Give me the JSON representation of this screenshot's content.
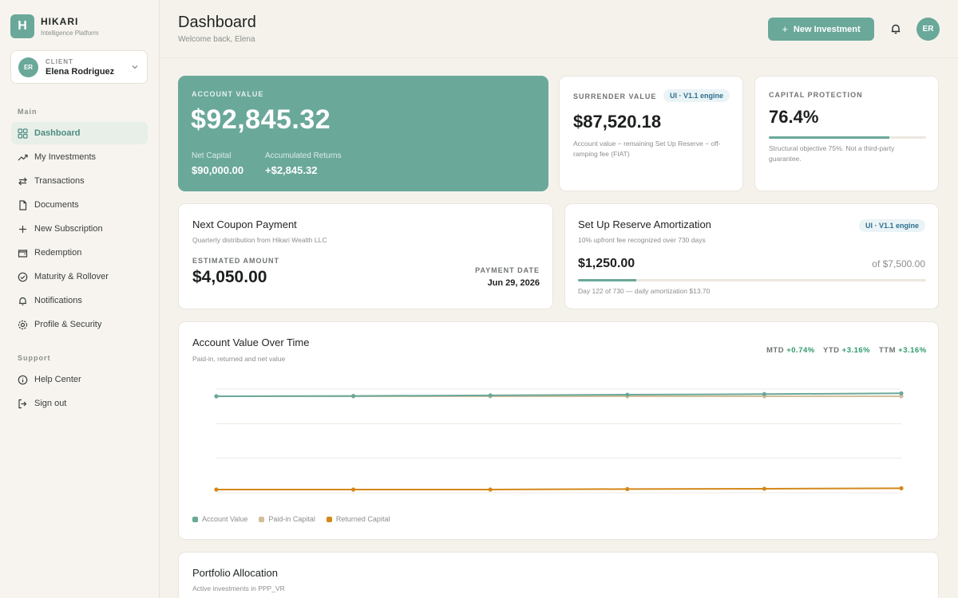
{
  "brand": {
    "initial": "H",
    "name": "HIKARI",
    "subtitle": "Intelligence Platform"
  },
  "client": {
    "initials": "ER",
    "label": "CLIENT",
    "name": "Elena Rodriguez"
  },
  "sidebar": {
    "main_label": "Main",
    "items": [
      {
        "label": "Dashboard",
        "icon": "grid-icon",
        "active": true
      },
      {
        "label": "My Investments",
        "icon": "trend-up-icon"
      },
      {
        "label": "Transactions",
        "icon": "swap-icon"
      },
      {
        "label": "Documents",
        "icon": "document-icon"
      },
      {
        "label": "New Subscription",
        "icon": "plus-icon"
      },
      {
        "label": "Redemption",
        "icon": "wallet-icon"
      },
      {
        "label": "Maturity & Rollover",
        "icon": "check-circle-icon"
      },
      {
        "label": "Notifications",
        "icon": "bell-icon"
      },
      {
        "label": "Profile & Security",
        "icon": "gear-icon"
      }
    ],
    "support_label": "Support",
    "support_items": [
      {
        "label": "Help Center",
        "icon": "info-icon"
      },
      {
        "label": "Sign out",
        "icon": "sign-out-icon"
      }
    ]
  },
  "header": {
    "title": "Dashboard",
    "subtitle": "Welcome back, Elena",
    "new_investment": "New Investment",
    "avatar": "ER"
  },
  "account": {
    "label": "ACCOUNT VALUE",
    "value": "$92,845.32",
    "net_capital_label": "Net Capital",
    "net_capital": "$90,000.00",
    "returns_label": "Accumulated Returns",
    "returns": "+$2,845.32"
  },
  "surrender": {
    "label": "SURRENDER VALUE",
    "tag": "UI · V1.1 engine",
    "value": "$87,520.18",
    "desc": "Account value − remaining Set Up Reserve − off-ramping fee (FIAT)"
  },
  "capital": {
    "label": "CAPITAL PROTECTION",
    "value": "76.4%",
    "progress": 0.764,
    "desc": "Structural objective 75%. Not a third-party guarantee."
  },
  "coupon": {
    "title": "Next Coupon Payment",
    "subtitle": "Quarterly distribution from Hikari Wealth LLC",
    "estimated_label": "ESTIMATED AMOUNT",
    "amount": "$4,050.00",
    "date_label": "PAYMENT DATE",
    "date": "Jun 29, 2026"
  },
  "reserve": {
    "title": "Set Up Reserve Amortization",
    "subtitle": "10% upfront fee recognized over 730 days",
    "tag": "UI · V1.1 engine",
    "amount": "$1,250.00",
    "of": "of $7,500.00",
    "progress": 0.167,
    "desc": "Day 122 of 730 — daily amortization $13.70"
  },
  "performance": {
    "title": "Account Value Over Time",
    "subtitle": "Paid-in, returned and net value",
    "mtd_label": "MTD",
    "mtd": "+0.74%",
    "ytd_label": "YTD",
    "ytd": "+3.16%",
    "ttm_label": "TTM",
    "ttm": "+3.16%"
  },
  "chart_data": {
    "type": "line",
    "x": [
      1,
      2,
      3,
      4,
      5,
      6
    ],
    "ylim": [
      0,
      100000
    ],
    "grid": true,
    "legend": "bottom-left",
    "series": [
      {
        "name": "Account Value",
        "color": "#6aa89a",
        "values": [
          90000,
          90300,
          90900,
          91500,
          92100,
          92845
        ]
      },
      {
        "name": "Paid-in Capital",
        "color": "#d2bf9a",
        "values": [
          90000,
          90000,
          90000,
          90000,
          90000,
          90000
        ]
      },
      {
        "name": "Returned Capital",
        "color": "#d4881a",
        "values": [
          0,
          0,
          0,
          500,
          800,
          1250
        ]
      }
    ]
  },
  "allocation": {
    "title": "Portfolio Allocation",
    "subtitle": "Active investments in PPP_VR"
  }
}
